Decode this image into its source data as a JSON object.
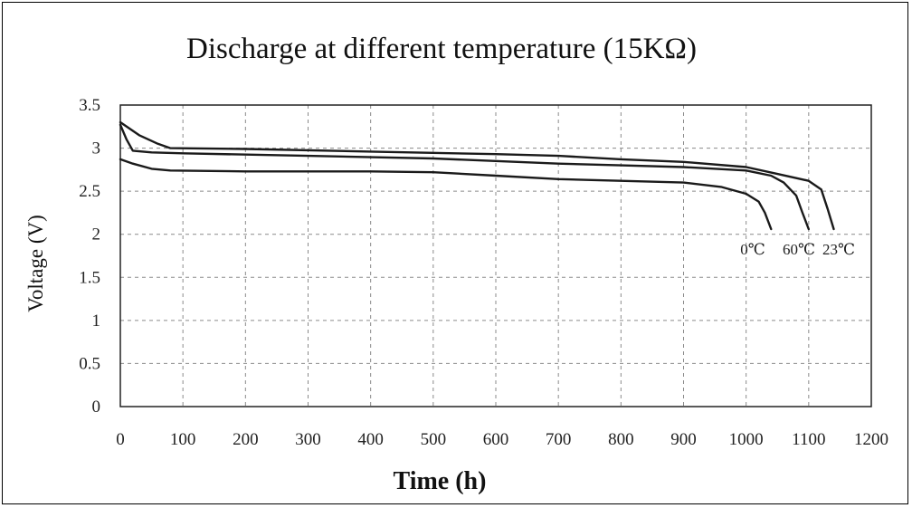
{
  "chart_data": {
    "type": "line",
    "title": "Discharge at different temperature (15KΩ)",
    "xlabel": "Time (h)",
    "ylabel": "Voltage (V)",
    "xlim": [
      0,
      1200
    ],
    "ylim": [
      0,
      3.5
    ],
    "x_ticks": [
      "0",
      "100",
      "200",
      "300",
      "400",
      "500",
      "600",
      "700",
      "800",
      "900",
      "1000",
      "1100",
      "1200"
    ],
    "y_ticks": [
      "0",
      "0.5",
      "1",
      "1.5",
      "2",
      "2.5",
      "3",
      "3.5"
    ],
    "grid": true,
    "series": [
      {
        "name": "0℃",
        "points": [
          [
            0,
            2.87
          ],
          [
            20,
            2.82
          ],
          [
            50,
            2.76
          ],
          [
            80,
            2.74
          ],
          [
            200,
            2.73
          ],
          [
            400,
            2.73
          ],
          [
            500,
            2.72
          ],
          [
            600,
            2.68
          ],
          [
            700,
            2.64
          ],
          [
            800,
            2.62
          ],
          [
            900,
            2.6
          ],
          [
            960,
            2.55
          ],
          [
            1000,
            2.47
          ],
          [
            1020,
            2.38
          ],
          [
            1030,
            2.25
          ],
          [
            1040,
            2.06
          ]
        ]
      },
      {
        "name": "60℃",
        "points": [
          [
            0,
            3.27
          ],
          [
            10,
            3.1
          ],
          [
            20,
            2.97
          ],
          [
            50,
            2.95
          ],
          [
            100,
            2.94
          ],
          [
            300,
            2.91
          ],
          [
            500,
            2.88
          ],
          [
            700,
            2.82
          ],
          [
            800,
            2.8
          ],
          [
            900,
            2.78
          ],
          [
            1000,
            2.74
          ],
          [
            1040,
            2.68
          ],
          [
            1060,
            2.6
          ],
          [
            1080,
            2.45
          ],
          [
            1090,
            2.25
          ],
          [
            1100,
            2.06
          ]
        ]
      },
      {
        "name": "23℃",
        "points": [
          [
            0,
            3.3
          ],
          [
            30,
            3.15
          ],
          [
            60,
            3.05
          ],
          [
            80,
            3.0
          ],
          [
            200,
            2.99
          ],
          [
            400,
            2.96
          ],
          [
            600,
            2.93
          ],
          [
            700,
            2.91
          ],
          [
            800,
            2.87
          ],
          [
            900,
            2.84
          ],
          [
            1000,
            2.78
          ],
          [
            1050,
            2.7
          ],
          [
            1100,
            2.62
          ],
          [
            1120,
            2.52
          ],
          [
            1130,
            2.3
          ],
          [
            1140,
            2.06
          ]
        ]
      }
    ]
  }
}
